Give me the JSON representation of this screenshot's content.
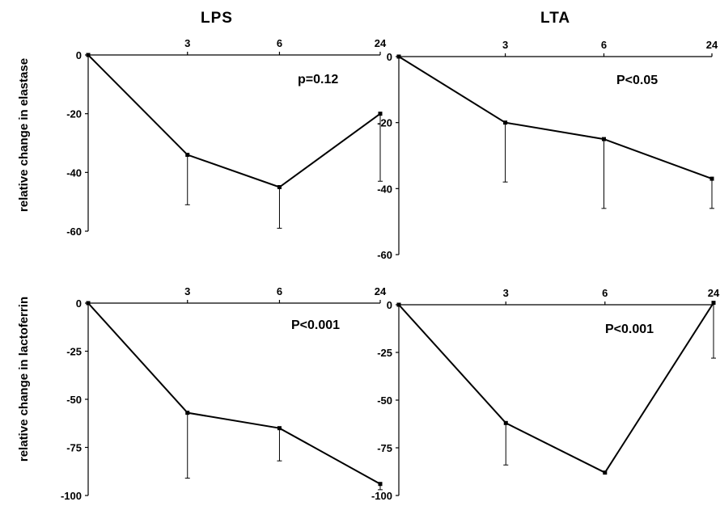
{
  "column_titles": [
    "LPS",
    "LTA"
  ],
  "row_labels": [
    "relative change in elastase",
    "relative change in lactoferrin"
  ],
  "chart_data": [
    {
      "type": "line",
      "panel": "LPS",
      "ylabel": "relative change in elastase",
      "x": [
        0,
        3,
        6,
        24
      ],
      "x_tick_labels": [
        "3",
        "6",
        "24"
      ],
      "ylim": [
        -60,
        0
      ],
      "y_ticks": [
        0,
        -20,
        -40,
        -60
      ],
      "values": [
        0,
        -34,
        -45,
        -20
      ],
      "error_low": [
        null,
        -51,
        -59,
        -43
      ],
      "annotation": "p=0.12"
    },
    {
      "type": "line",
      "panel": "LTA",
      "ylabel": "",
      "x": [
        0,
        3,
        6,
        24
      ],
      "x_tick_labels": [
        "3",
        "6",
        "24"
      ],
      "ylim": [
        -60,
        0
      ],
      "y_ticks": [
        0,
        -20,
        -40,
        -60
      ],
      "values": [
        0,
        -20,
        -25,
        -37
      ],
      "error_low": [
        null,
        -38,
        -46,
        -46
      ],
      "annotation": "P<0.05"
    },
    {
      "type": "line",
      "panel": "LPS",
      "ylabel": "relative change in lactoferrin",
      "x": [
        0,
        3,
        6,
        24
      ],
      "x_tick_labels": [
        "3",
        "6",
        "24"
      ],
      "ylim": [
        -100,
        0
      ],
      "y_ticks": [
        0,
        -25,
        -50,
        -75,
        -100
      ],
      "values": [
        0,
        -57,
        -65,
        -94
      ],
      "error_low": [
        null,
        -91,
        -82,
        -97
      ],
      "annotation": "P<0.001"
    },
    {
      "type": "line",
      "panel": "LTA",
      "ylabel": "",
      "x": [
        0,
        3,
        6,
        24
      ],
      "x_tick_labels": [
        "3",
        "6",
        "24"
      ],
      "ylim": [
        -100,
        0
      ],
      "y_ticks": [
        0,
        -25,
        -50,
        -75,
        -100
      ],
      "values": [
        0,
        -62,
        -88,
        1
      ],
      "error_low": [
        null,
        -84,
        null,
        -28
      ],
      "annotation": "P<0.001"
    }
  ]
}
